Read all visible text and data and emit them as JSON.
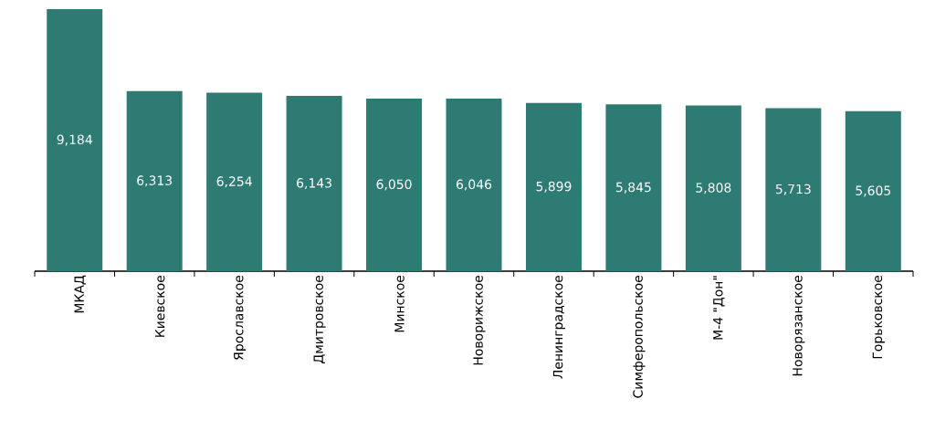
{
  "chart_data": {
    "type": "bar",
    "categories": [
      "МКАД",
      "Киевское",
      "Ярославское",
      "Дмитровское",
      "Минское",
      "Новорижское",
      "Ленинградское",
      "Симферопольское",
      "М-4 \"Дон\"",
      "Новорязанское",
      "Горьковское"
    ],
    "values": [
      9184,
      6313,
      6254,
      6143,
      6050,
      6046,
      5899,
      5845,
      5808,
      5713,
      5605
    ],
    "value_labels": [
      "9,184",
      "6,313",
      "6,254",
      "6,143",
      "6,050",
      "6,046",
      "5,899",
      "5,845",
      "5,808",
      "5,713",
      "5,605"
    ],
    "color": "#2e7b73"
  }
}
